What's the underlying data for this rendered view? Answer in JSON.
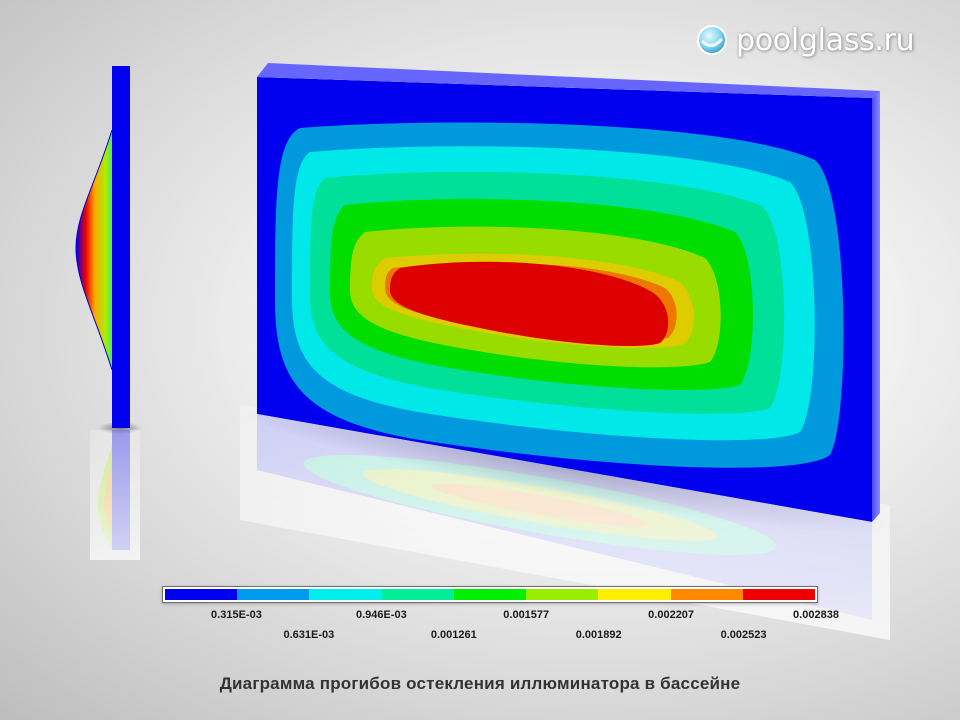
{
  "brand": {
    "text": "poolglass.ru",
    "icon": "droplet-logo-icon"
  },
  "legend": {
    "colors": [
      "#0000ee",
      "#0099ee",
      "#00eeee",
      "#00ee99",
      "#00ee00",
      "#99ee00",
      "#ffee00",
      "#ff8800",
      "#ee0000"
    ],
    "ticks_upper": [
      "0.315E-03",
      "0.946E-03",
      "0.001577",
      "0.002207",
      "0.002838"
    ],
    "ticks_lower": [
      "0.631E-03",
      "0.001261",
      "0.001892",
      "0.002523"
    ]
  },
  "contour_colors": [
    "#0000ee",
    "#0099dd",
    "#00e8e8",
    "#00e099",
    "#00dd00",
    "#99dd00",
    "#ddcc00",
    "#ee7700",
    "#dd0000"
  ],
  "caption": "Диаграмма прогибов остекления иллюминатора в бассейне"
}
